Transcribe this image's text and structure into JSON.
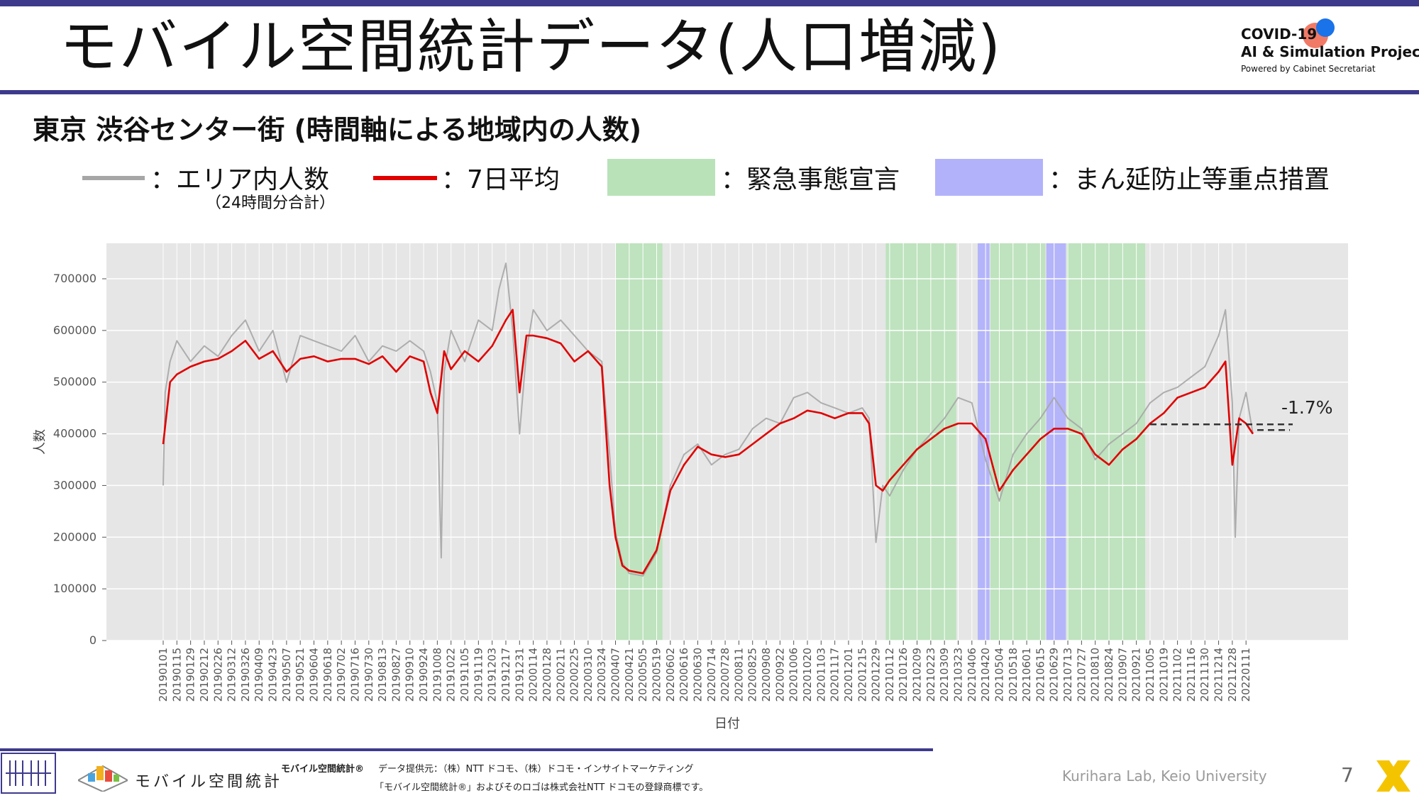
{
  "slide": {
    "title": "モバイル空間統計データ(人口増減)",
    "page_number": "7",
    "logo": {
      "line1": "COVID-19",
      "line2": "AI & Simulation Project",
      "line3": "Powered by Cabinet Secretariat"
    }
  },
  "subtitle": "東京 渋谷センター街 (時間軸による地域内の人数)",
  "legend": {
    "gray_label": "：エリア内人数",
    "gray_note": "（24時間分合計）",
    "red_label": "：7日平均",
    "green_label": "：緊急事態宣言",
    "purple_label": "：まん延防止等重点措置"
  },
  "colors": {
    "gray_line": "#a6a6a6",
    "red_line": "#e00000",
    "emergency": "#b9e2b9",
    "semi_emergency": "#aeaefd",
    "panel_bg": "#e6e6e6",
    "accent": "#3d3a8c"
  },
  "footer": {
    "brand": "モバイル空間統計",
    "trademark": "モバイル空間統計®",
    "provider": "データ提供元：（株）NTT ドコモ、（株）ドコモ・インサイトマーケティング",
    "notice": "「モバイル空間統計®」およびそのロゴは株式会社NTT ドコモの登録商標です。",
    "lab": "Kurihara Lab, Keio University"
  },
  "chart_data": {
    "type": "line",
    "xlabel": "日付",
    "ylabel": "人数",
    "ylim": [
      0,
      750000
    ],
    "y_ticks": [
      "0",
      "100000",
      "200000",
      "300000",
      "400000",
      "500000",
      "600000",
      "700000"
    ],
    "x_ticks": [
      "20190101",
      "20190115",
      "20190129",
      "20190212",
      "20190226",
      "20190312",
      "20190326",
      "20190409",
      "20190423",
      "20190507",
      "20190521",
      "20190604",
      "20190618",
      "20190702",
      "20190716",
      "20190730",
      "20190813",
      "20190827",
      "20190910",
      "20190924",
      "20191008",
      "20191022",
      "20191105",
      "20191119",
      "20191203",
      "20191217",
      "20191231",
      "20200114",
      "20200128",
      "20200211",
      "20200225",
      "20200310",
      "20200324",
      "20200407",
      "20200421",
      "20200505",
      "20200519",
      "20200602",
      "20200616",
      "20200630",
      "20200714",
      "20200728",
      "20200811",
      "20200825",
      "20200908",
      "20200922",
      "20201006",
      "20201020",
      "20201103",
      "20201117",
      "20201201",
      "20201215",
      "20201229",
      "20210112",
      "20210126",
      "20210209",
      "20210223",
      "20210309",
      "20210323",
      "20210406",
      "20210420",
      "20210504",
      "20210518",
      "20210601",
      "20210615",
      "20210629",
      "20210713",
      "20210727",
      "20210810",
      "20210824",
      "20210907",
      "20210921",
      "20211005",
      "20211019",
      "20211102",
      "20211116",
      "20211130",
      "20211214",
      "20211228",
      "20220111"
    ],
    "grid": true,
    "annotation": "-1.7%",
    "reference_value": 410000,
    "shaded_periods": [
      {
        "type": "emergency",
        "start": "20200407",
        "end": "20200525"
      },
      {
        "type": "emergency",
        "start": "20210108",
        "end": "20210321"
      },
      {
        "type": "semi_emergency",
        "start": "20210412",
        "end": "20210424"
      },
      {
        "type": "emergency",
        "start": "20210425",
        "end": "20210620"
      },
      {
        "type": "semi_emergency",
        "start": "20210621",
        "end": "20210711"
      },
      {
        "type": "emergency",
        "start": "20210712",
        "end": "20210930"
      }
    ],
    "series": [
      {
        "name": "エリア内人数",
        "color": "gray",
        "x": [
          "20190101",
          "20190103",
          "20190108",
          "20190115",
          "20190129",
          "20190212",
          "20190226",
          "20190312",
          "20190326",
          "20190409",
          "20190423",
          "20190507",
          "20190521",
          "20190604",
          "20190618",
          "20190702",
          "20190716",
          "20190730",
          "20190813",
          "20190827",
          "20190910",
          "20190924",
          "20191001",
          "20191008",
          "20191012",
          "20191015",
          "20191022",
          "20191105",
          "20191119",
          "20191203",
          "20191210",
          "20191217",
          "20191224",
          "20191231",
          "20200107",
          "20200114",
          "20200128",
          "20200211",
          "20200225",
          "20200310",
          "20200324",
          "20200401",
          "20200407",
          "20200414",
          "20200421",
          "20200505",
          "20200519",
          "20200602",
          "20200616",
          "20200630",
          "20200714",
          "20200728",
          "20200811",
          "20200825",
          "20200908",
          "20200922",
          "20201006",
          "20201020",
          "20201103",
          "20201117",
          "20201201",
          "20201215",
          "20201222",
          "20201229",
          "20210105",
          "20210112",
          "20210126",
          "20210209",
          "20210223",
          "20210309",
          "20210323",
          "20210406",
          "20210420",
          "20210504",
          "20210518",
          "20210601",
          "20210615",
          "20210629",
          "20210713",
          "20210727",
          "20210810",
          "20210824",
          "20210907",
          "20210921",
          "20211005",
          "20211019",
          "20211102",
          "20211116",
          "20211130",
          "20211214",
          "20211221",
          "20211228",
          "20211231",
          "20220104",
          "20220111",
          "20220118"
        ],
        "values": [
          300000,
          480000,
          540000,
          580000,
          540000,
          570000,
          550000,
          590000,
          620000,
          560000,
          600000,
          500000,
          590000,
          580000,
          570000,
          560000,
          590000,
          540000,
          570000,
          560000,
          580000,
          560000,
          520000,
          460000,
          160000,
          520000,
          600000,
          540000,
          620000,
          600000,
          680000,
          730000,
          600000,
          400000,
          560000,
          640000,
          600000,
          620000,
          590000,
          560000,
          540000,
          360000,
          210000,
          150000,
          130000,
          125000,
          170000,
          300000,
          360000,
          380000,
          340000,
          360000,
          370000,
          410000,
          430000,
          420000,
          470000,
          480000,
          460000,
          450000,
          440000,
          450000,
          430000,
          190000,
          300000,
          280000,
          330000,
          370000,
          400000,
          430000,
          470000,
          460000,
          350000,
          270000,
          360000,
          400000,
          430000,
          470000,
          430000,
          410000,
          350000,
          380000,
          400000,
          420000,
          460000,
          480000,
          490000,
          510000,
          530000,
          590000,
          640000,
          460000,
          200000,
          430000,
          480000,
          400000
        ]
      },
      {
        "name": "7日平均",
        "color": "red",
        "x": [
          "20190101",
          "20190108",
          "20190115",
          "20190129",
          "20190212",
          "20190226",
          "20190312",
          "20190326",
          "20190409",
          "20190423",
          "20190507",
          "20190521",
          "20190604",
          "20190618",
          "20190702",
          "20190716",
          "20190730",
          "20190813",
          "20190827",
          "20190910",
          "20190924",
          "20191001",
          "20191008",
          "20191015",
          "20191022",
          "20191105",
          "20191119",
          "20191203",
          "20191217",
          "20191224",
          "20191231",
          "20200107",
          "20200114",
          "20200128",
          "20200211",
          "20200225",
          "20200310",
          "20200324",
          "20200401",
          "20200407",
          "20200414",
          "20200421",
          "20200505",
          "20200519",
          "20200602",
          "20200616",
          "20200630",
          "20200714",
          "20200728",
          "20200811",
          "20200825",
          "20200908",
          "20200922",
          "20201006",
          "20201020",
          "20201103",
          "20201117",
          "20201201",
          "20201215",
          "20201222",
          "20201229",
          "20210105",
          "20210112",
          "20210126",
          "20210209",
          "20210223",
          "20210309",
          "20210323",
          "20210406",
          "20210420",
          "20210504",
          "20210518",
          "20210601",
          "20210615",
          "20210629",
          "20210713",
          "20210727",
          "20210810",
          "20210824",
          "20210907",
          "20210921",
          "20211005",
          "20211019",
          "20211102",
          "20211116",
          "20211130",
          "20211214",
          "20211221",
          "20211228",
          "20220104",
          "20220111",
          "20220118"
        ],
        "values": [
          380000,
          500000,
          515000,
          530000,
          540000,
          545000,
          560000,
          580000,
          545000,
          560000,
          520000,
          545000,
          550000,
          540000,
          545000,
          545000,
          535000,
          550000,
          520000,
          550000,
          540000,
          480000,
          440000,
          560000,
          525000,
          560000,
          540000,
          570000,
          620000,
          640000,
          480000,
          590000,
          590000,
          585000,
          575000,
          540000,
          560000,
          530000,
          300000,
          200000,
          145000,
          135000,
          130000,
          175000,
          290000,
          340000,
          375000,
          360000,
          355000,
          360000,
          380000,
          400000,
          420000,
          430000,
          445000,
          440000,
          430000,
          440000,
          440000,
          420000,
          300000,
          290000,
          310000,
          340000,
          370000,
          390000,
          410000,
          420000,
          420000,
          390000,
          290000,
          330000,
          360000,
          390000,
          410000,
          410000,
          400000,
          360000,
          340000,
          370000,
          390000,
          420000,
          440000,
          470000,
          480000,
          490000,
          520000,
          540000,
          340000,
          430000,
          420000,
          400000
        ]
      }
    ]
  }
}
